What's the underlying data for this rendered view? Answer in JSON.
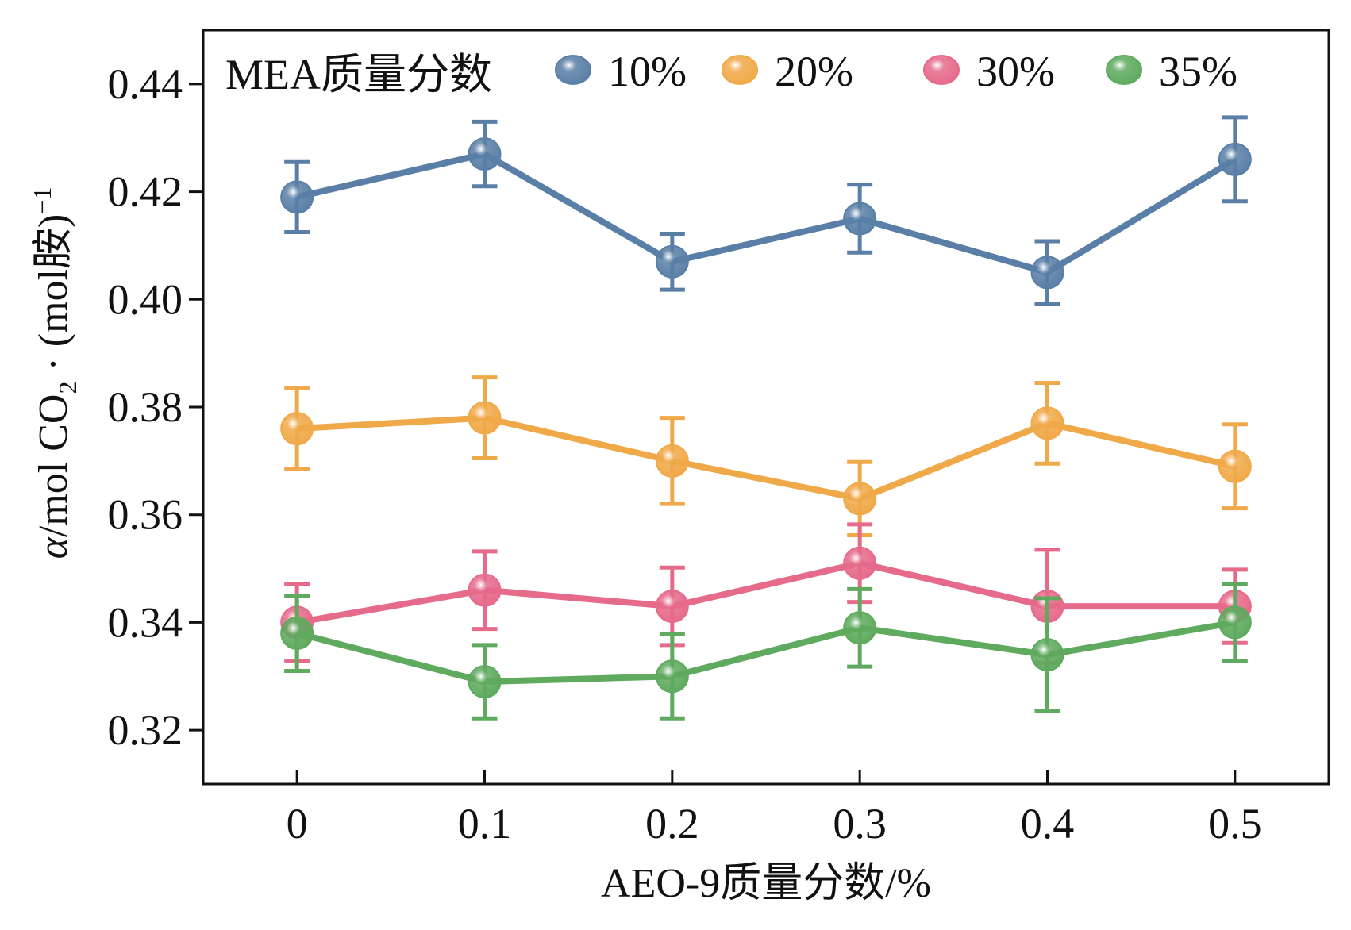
{
  "chart_data": {
    "type": "line",
    "title": "",
    "xlabel": "AEO-9质量分数/%",
    "ylabel": {
      "alpha": "α",
      "pre": "/mol CO",
      "sub": "2",
      "post": " · (mol胺)",
      "sup": "−1"
    },
    "x": [
      0,
      0.1,
      0.2,
      0.3,
      0.4,
      0.5
    ],
    "x_tick_labels": [
      "0",
      "0.1",
      "0.2",
      "0.3",
      "0.4",
      "0.5"
    ],
    "xlim": [
      -0.05,
      0.55
    ],
    "ylim": [
      0.31,
      0.45
    ],
    "y_ticks": [
      0.32,
      0.34,
      0.36,
      0.38,
      0.4,
      0.42,
      0.44
    ],
    "y_tick_labels": [
      "0.32",
      "0.34",
      "0.36",
      "0.38",
      "0.40",
      "0.42",
      "0.44"
    ],
    "grid": false,
    "legend": {
      "title": "MEA质量分数",
      "placement": "top"
    },
    "series": [
      {
        "name": "10%",
        "color": "#5a7fa6",
        "values": [
          0.419,
          0.427,
          0.407,
          0.415,
          0.405,
          0.426
        ],
        "errors": [
          0.0065,
          0.006,
          0.0052,
          0.0063,
          0.0058,
          0.0078
        ]
      },
      {
        "name": "20%",
        "color": "#f0a948",
        "values": [
          0.376,
          0.378,
          0.37,
          0.363,
          0.377,
          0.369
        ],
        "errors": [
          0.0075,
          0.0075,
          0.008,
          0.0068,
          0.0075,
          0.0078
        ]
      },
      {
        "name": "30%",
        "color": "#e66a8a",
        "values": [
          0.34,
          0.346,
          0.343,
          0.351,
          0.343,
          0.343
        ],
        "errors": [
          0.0072,
          0.0072,
          0.0072,
          0.0072,
          0.0105,
          0.0068
        ]
      },
      {
        "name": "35%",
        "color": "#5faa5f",
        "values": [
          0.338,
          0.329,
          0.33,
          0.339,
          0.334,
          0.34
        ],
        "errors": [
          0.007,
          0.0068,
          0.0078,
          0.0072,
          0.0105,
          0.0072
        ]
      }
    ]
  }
}
